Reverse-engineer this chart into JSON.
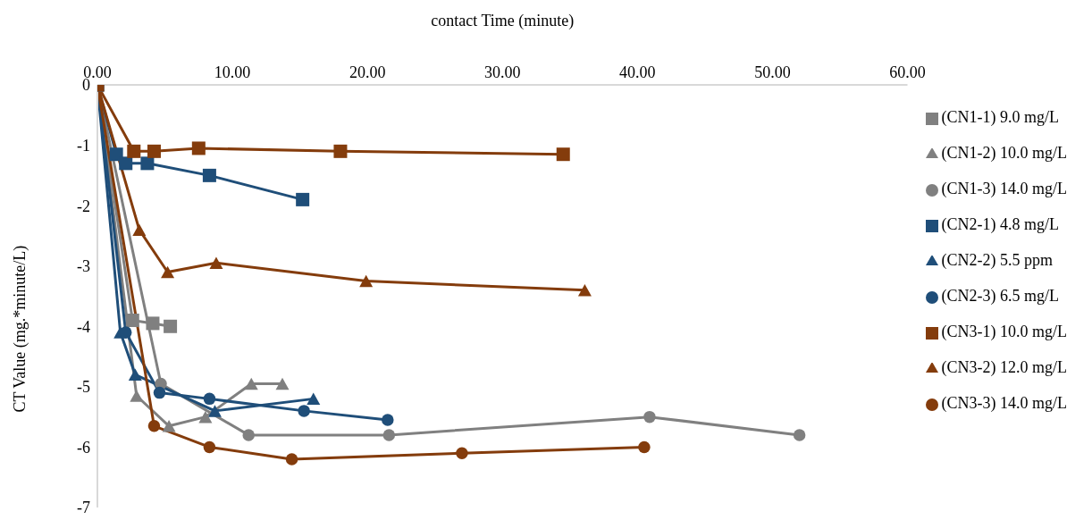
{
  "chart_data": {
    "type": "line",
    "xlabel": "contact Time (minute)",
    "ylabel": "CT Value (mg.*minute/L)",
    "xlim": [
      0,
      60
    ],
    "xticks": [
      {
        "value": 0,
        "label": "0.00"
      },
      {
        "value": 10,
        "label": "10.00"
      },
      {
        "value": 20,
        "label": "20.00"
      },
      {
        "value": 30,
        "label": "30.00"
      },
      {
        "value": 40,
        "label": "40.00"
      },
      {
        "value": 50,
        "label": "50.00"
      },
      {
        "value": 60,
        "label": "60.00"
      }
    ],
    "ylim": [
      -7,
      0
    ],
    "yticks": [
      0,
      -1,
      -2,
      -3,
      -4,
      -5,
      -6,
      -7
    ],
    "grid": false,
    "legend": "right",
    "line_style": "solid",
    "series": [
      {
        "name": "(CN1-1) 9.0 mg/L",
        "color": "#808080",
        "marker": "square",
        "x": [
          0,
          2.6,
          4.1,
          5.4
        ],
        "values": [
          0,
          -3.9,
          -3.95,
          -4.0
        ]
      },
      {
        "name": "(CN1-2) 10.0 mg/L",
        "color": "#808080",
        "marker": "triangle",
        "x": [
          0,
          2.9,
          5.3,
          8.0,
          11.4,
          13.7
        ],
        "values": [
          0,
          -5.15,
          -5.65,
          -5.5,
          -4.95,
          -4.95
        ]
      },
      {
        "name": "(CN1-3) 14.0 mg/L",
        "color": "#808080",
        "marker": "circle",
        "x": [
          0,
          4.7,
          11.2,
          21.6,
          40.9,
          52.0
        ],
        "values": [
          0,
          -4.95,
          -5.8,
          -5.8,
          -5.5,
          -5.8
        ]
      },
      {
        "name": "(CN2-1) 4.8 mg/L",
        "color": "#1f4e79",
        "marker": "square",
        "x": [
          0,
          1.4,
          2.1,
          3.7,
          8.3,
          15.2
        ],
        "values": [
          0,
          -1.15,
          -1.3,
          -1.3,
          -1.5,
          -1.9
        ]
      },
      {
        "name": "(CN2-2) 5.5 ppm",
        "color": "#1f4e79",
        "marker": "triangle",
        "x": [
          0,
          1.7,
          2.8,
          8.7,
          16.0
        ],
        "values": [
          0,
          -4.1,
          -4.8,
          -5.4,
          -5.2
        ]
      },
      {
        "name": "(CN2-3) 6.5 mg/L",
        "color": "#1f4e79",
        "marker": "circle",
        "x": [
          0,
          2.1,
          4.6,
          8.3,
          15.3,
          21.5
        ],
        "values": [
          0,
          -4.1,
          -5.1,
          -5.2,
          -5.4,
          -5.55
        ]
      },
      {
        "name": "(CN3-1) 10.0 mg/L",
        "color": "#843c0c",
        "marker": "square",
        "x": [
          0,
          2.7,
          4.2,
          7.5,
          18.0,
          34.5
        ],
        "values": [
          0,
          -1.1,
          -1.1,
          -1.05,
          -1.1,
          -1.15
        ]
      },
      {
        "name": "(CN3-2) 12.0 mg/L",
        "color": "#843c0c",
        "marker": "triangle",
        "x": [
          0,
          3.1,
          5.2,
          8.8,
          19.9,
          36.1
        ],
        "values": [
          0,
          -2.4,
          -3.1,
          -2.95,
          -3.25,
          -3.4
        ]
      },
      {
        "name": "(CN3-3) 14.0 mg/L",
        "color": "#843c0c",
        "marker": "circle",
        "x": [
          0,
          4.2,
          8.3,
          14.4,
          27.0,
          40.5
        ],
        "values": [
          0,
          -5.65,
          -6.0,
          -6.2,
          -6.1,
          -6.0
        ]
      }
    ]
  }
}
